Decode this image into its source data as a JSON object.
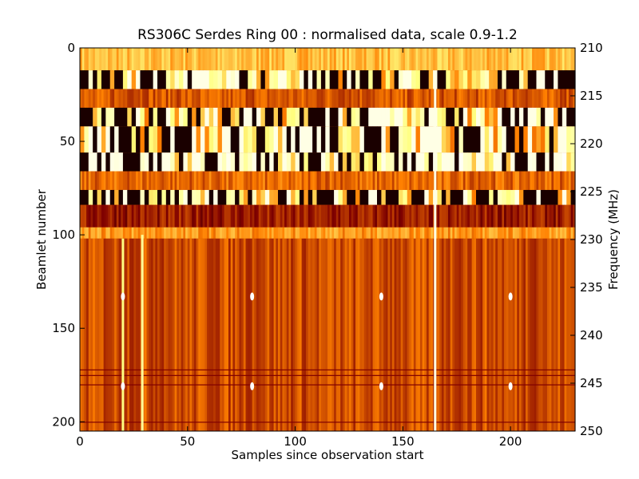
{
  "chart_data": {
    "type": "heatmap",
    "title": "RS306C Serdes Ring 00 : normalised data, scale 0.9-1.2",
    "xlabel": "Samples since observation start",
    "ylabel": "Beamlet number",
    "y2label": "Frequency (MHz)",
    "colormap": "afmhot",
    "color_scale": [
      0.9,
      1.2
    ],
    "xlim": [
      0,
      230
    ],
    "ylim": [
      205,
      0
    ],
    "y2lim": [
      250,
      210
    ],
    "x_ticks": [
      "0",
      "50",
      "100",
      "150",
      "200"
    ],
    "y_ticks": [
      "0",
      "50",
      "100",
      "150",
      "200"
    ],
    "y2_ticks": [
      "210",
      "215",
      "220",
      "225",
      "230",
      "235",
      "240",
      "245",
      "250"
    ],
    "x_tick_values": [
      0,
      50,
      100,
      150,
      200
    ],
    "y_tick_values": [
      0,
      50,
      100,
      150,
      200
    ],
    "y2_tick_values": [
      210,
      215,
      220,
      225,
      230,
      235,
      240,
      245,
      250
    ],
    "bands": [
      {
        "y": [
          0,
          12
        ],
        "level": 0.62
      },
      {
        "y": [
          12,
          22
        ],
        "level": 0.85
      },
      {
        "y": [
          22,
          32
        ],
        "level": 0.42
      },
      {
        "y": [
          32,
          42
        ],
        "level": 0.8
      },
      {
        "y": [
          42,
          56
        ],
        "level": 0.78
      },
      {
        "y": [
          56,
          66
        ],
        "level": 1.0
      },
      {
        "y": [
          66,
          76
        ],
        "level": 0.45
      },
      {
        "y": [
          76,
          84
        ],
        "level": 0.8
      },
      {
        "y": [
          84,
          96
        ],
        "level": 0.3
      },
      {
        "y": [
          96,
          102
        ],
        "level": 0.55
      },
      {
        "y": [
          102,
          205
        ],
        "level": 0.4
      }
    ],
    "vertical_features": [
      {
        "x": 20,
        "y": [
          102,
          205
        ],
        "level": 0.75
      },
      {
        "x": 29,
        "y": [
          100,
          205
        ],
        "level": 0.8
      },
      {
        "x": 165,
        "y": [
          20,
          205
        ],
        "level": 0.95
      }
    ],
    "hotspots": [
      {
        "x": 20,
        "y": 133
      },
      {
        "x": 80,
        "y": 133
      },
      {
        "x": 140,
        "y": 133
      },
      {
        "x": 200,
        "y": 133
      },
      {
        "x": 20,
        "y": 181
      },
      {
        "x": 80,
        "y": 181
      },
      {
        "x": 140,
        "y": 181
      },
      {
        "x": 200,
        "y": 181
      }
    ]
  }
}
